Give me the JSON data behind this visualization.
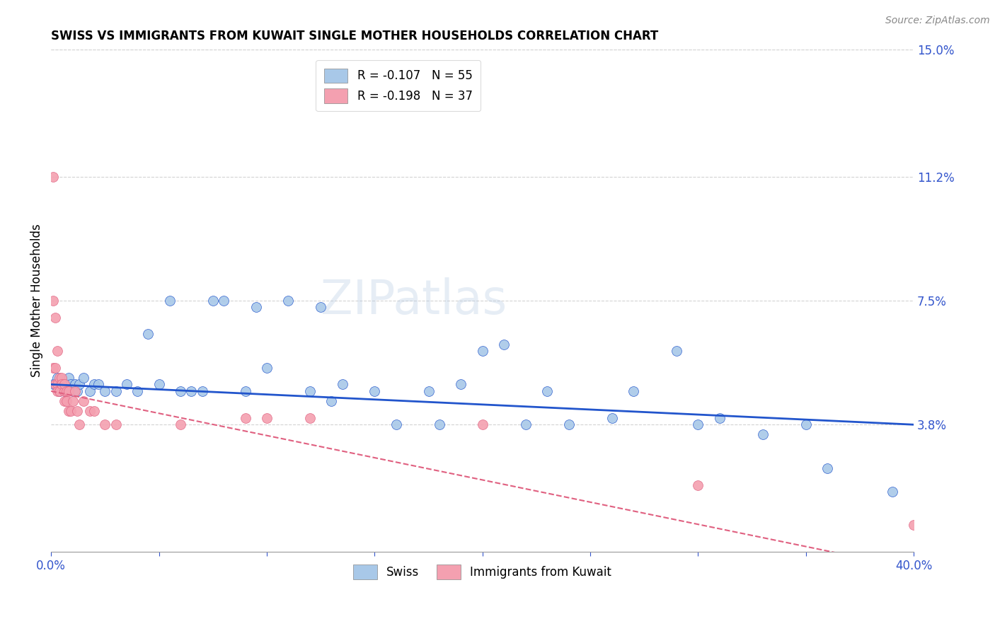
{
  "title": "SWISS VS IMMIGRANTS FROM KUWAIT SINGLE MOTHER HOUSEHOLDS CORRELATION CHART",
  "source": "Source: ZipAtlas.com",
  "ylabel": "Single Mother Households",
  "xlim": [
    0,
    0.4
  ],
  "ylim": [
    0,
    0.15
  ],
  "xtick_positions": [
    0.0,
    0.05,
    0.1,
    0.15,
    0.2,
    0.25,
    0.3,
    0.35,
    0.4
  ],
  "xtick_labels": [
    "0.0%",
    "",
    "",
    "",
    "",
    "",
    "",
    "",
    "40.0%"
  ],
  "ytick_labels_right": [
    "15.0%",
    "11.2%",
    "7.5%",
    "3.8%"
  ],
  "ytick_vals_right": [
    0.15,
    0.112,
    0.075,
    0.038
  ],
  "swiss_color": "#a8c8e8",
  "kuwait_color": "#f4a0b0",
  "swiss_line_color": "#2255cc",
  "kuwait_line_color": "#e06080",
  "watermark": "ZIPatlas",
  "swiss_x": [
    0.001,
    0.002,
    0.003,
    0.004,
    0.005,
    0.006,
    0.007,
    0.008,
    0.009,
    0.01,
    0.011,
    0.012,
    0.013,
    0.015,
    0.018,
    0.02,
    0.022,
    0.03,
    0.035,
    0.04,
    0.05,
    0.055,
    0.06,
    0.065,
    0.08,
    0.09,
    0.095,
    0.11,
    0.12,
    0.125,
    0.135,
    0.15,
    0.16,
    0.175,
    0.19,
    0.2,
    0.22,
    0.23,
    0.24,
    0.26,
    0.27,
    0.3,
    0.31,
    0.33,
    0.35,
    0.36,
    0.21,
    0.13,
    0.29,
    0.18,
    0.075,
    0.045,
    0.025,
    0.07,
    0.1,
    0.39
  ],
  "swiss_y": [
    0.05,
    0.05,
    0.052,
    0.048,
    0.05,
    0.048,
    0.05,
    0.052,
    0.05,
    0.048,
    0.05,
    0.048,
    0.05,
    0.052,
    0.048,
    0.05,
    0.05,
    0.048,
    0.05,
    0.048,
    0.05,
    0.075,
    0.048,
    0.048,
    0.075,
    0.048,
    0.073,
    0.075,
    0.048,
    0.073,
    0.05,
    0.048,
    0.038,
    0.048,
    0.05,
    0.06,
    0.038,
    0.048,
    0.038,
    0.04,
    0.048,
    0.038,
    0.04,
    0.035,
    0.038,
    0.025,
    0.062,
    0.045,
    0.06,
    0.038,
    0.075,
    0.065,
    0.048,
    0.048,
    0.055,
    0.018
  ],
  "kuwait_x": [
    0.001,
    0.001,
    0.001,
    0.002,
    0.002,
    0.002,
    0.003,
    0.003,
    0.003,
    0.004,
    0.004,
    0.005,
    0.005,
    0.006,
    0.006,
    0.006,
    0.007,
    0.007,
    0.008,
    0.008,
    0.009,
    0.01,
    0.011,
    0.012,
    0.013,
    0.015,
    0.018,
    0.02,
    0.025,
    0.03,
    0.06,
    0.09,
    0.1,
    0.12,
    0.2,
    0.3,
    0.4
  ],
  "kuwait_y": [
    0.112,
    0.075,
    0.055,
    0.07,
    0.055,
    0.05,
    0.06,
    0.05,
    0.048,
    0.052,
    0.048,
    0.052,
    0.05,
    0.048,
    0.045,
    0.05,
    0.048,
    0.045,
    0.048,
    0.042,
    0.042,
    0.045,
    0.048,
    0.042,
    0.038,
    0.045,
    0.042,
    0.042,
    0.038,
    0.038,
    0.038,
    0.04,
    0.04,
    0.04,
    0.038,
    0.02,
    0.008
  ]
}
